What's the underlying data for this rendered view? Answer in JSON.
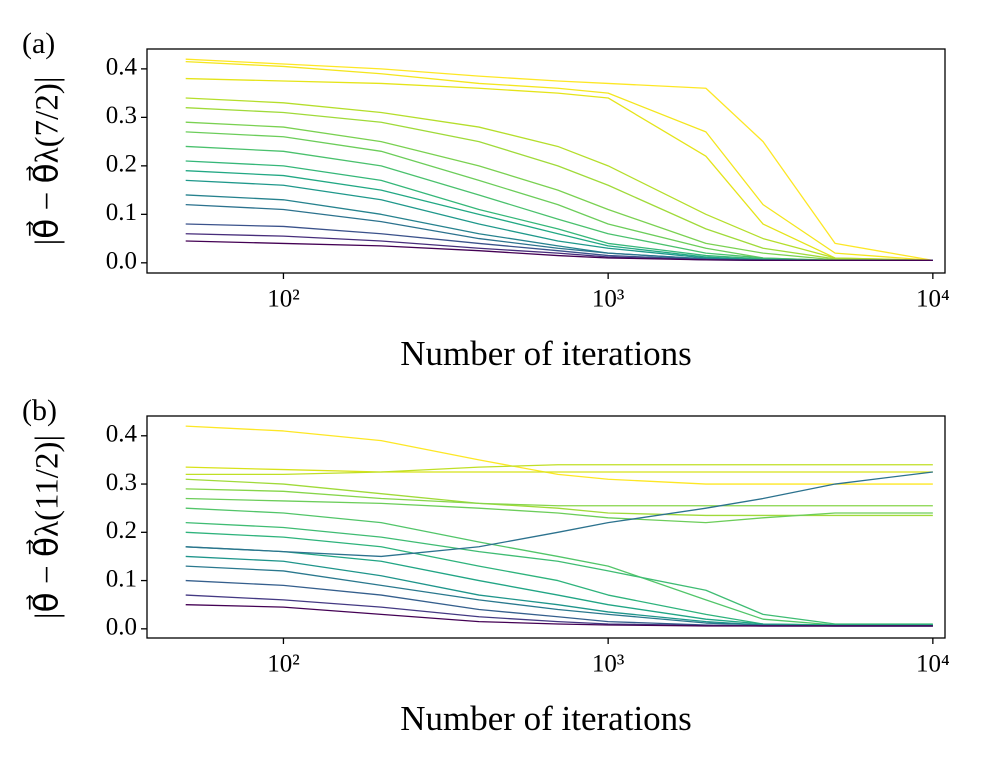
{
  "chart_data": [
    {
      "type": "line",
      "panel_label": "(a)",
      "xlabel": "Number of iterations",
      "ylabel": "|θ⃗ − θ⃗λ(7/2)|",
      "xscale": "log",
      "xlim": [
        38,
        10900
      ],
      "ylim": [
        -0.021,
        0.441
      ],
      "xticks": [
        {
          "value": 100,
          "label": "10²"
        },
        {
          "value": 1000,
          "label": "10³"
        },
        {
          "value": 10000,
          "label": "10⁴"
        }
      ],
      "yticks": [
        {
          "value": 0,
          "label": "0.0"
        },
        {
          "value": 0.1,
          "label": "0.1"
        },
        {
          "value": 0.2,
          "label": "0.2"
        },
        {
          "value": 0.3,
          "label": "0.3"
        },
        {
          "value": 0.4,
          "label": "0.4"
        }
      ],
      "x": [
        50,
        100,
        200,
        400,
        700,
        1000,
        2000,
        3000,
        5000,
        10000
      ],
      "series": [
        {
          "color": "#fde725",
          "values": [
            0.42,
            0.41,
            0.4,
            0.385,
            0.375,
            0.37,
            0.36,
            0.25,
            0.04,
            0.005
          ]
        },
        {
          "color": "#f4e61e",
          "values": [
            0.415,
            0.405,
            0.39,
            0.37,
            0.36,
            0.35,
            0.27,
            0.12,
            0.02,
            0.005
          ]
        },
        {
          "color": "#e5e419",
          "values": [
            0.38,
            0.375,
            0.37,
            0.36,
            0.35,
            0.34,
            0.22,
            0.08,
            0.01,
            0.005
          ]
        },
        {
          "color": "#b5de2b",
          "values": [
            0.34,
            0.33,
            0.31,
            0.28,
            0.24,
            0.2,
            0.1,
            0.05,
            0.01,
            0.005
          ]
        },
        {
          "color": "#a0da39",
          "values": [
            0.32,
            0.31,
            0.29,
            0.25,
            0.2,
            0.16,
            0.07,
            0.03,
            0.008,
            0.005
          ]
        },
        {
          "color": "#7ad151",
          "values": [
            0.29,
            0.28,
            0.25,
            0.2,
            0.15,
            0.11,
            0.04,
            0.02,
            0.006,
            0.005
          ]
        },
        {
          "color": "#6ccd5a",
          "values": [
            0.27,
            0.26,
            0.23,
            0.17,
            0.12,
            0.08,
            0.03,
            0.01,
            0.005,
            0.005
          ]
        },
        {
          "color": "#4ac16d",
          "values": [
            0.24,
            0.23,
            0.2,
            0.14,
            0.09,
            0.06,
            0.02,
            0.01,
            0.005,
            0.005
          ]
        },
        {
          "color": "#35b779",
          "values": [
            0.21,
            0.2,
            0.17,
            0.11,
            0.07,
            0.04,
            0.015,
            0.008,
            0.005,
            0.005
          ]
        },
        {
          "color": "#22a884",
          "values": [
            0.19,
            0.18,
            0.15,
            0.1,
            0.06,
            0.035,
            0.012,
            0.006,
            0.005,
            0.005
          ]
        },
        {
          "color": "#1f988b",
          "values": [
            0.17,
            0.16,
            0.13,
            0.08,
            0.045,
            0.03,
            0.01,
            0.006,
            0.005,
            0.005
          ]
        },
        {
          "color": "#26828e",
          "values": [
            0.14,
            0.13,
            0.1,
            0.06,
            0.035,
            0.02,
            0.008,
            0.006,
            0.005,
            0.005
          ]
        },
        {
          "color": "#2c728e",
          "values": [
            0.12,
            0.11,
            0.085,
            0.05,
            0.03,
            0.02,
            0.008,
            0.006,
            0.005,
            0.005
          ]
        },
        {
          "color": "#3b528b",
          "values": [
            0.08,
            0.075,
            0.06,
            0.04,
            0.025,
            0.015,
            0.007,
            0.005,
            0.005,
            0.005
          ]
        },
        {
          "color": "#472d7b",
          "values": [
            0.06,
            0.055,
            0.045,
            0.03,
            0.02,
            0.012,
            0.006,
            0.005,
            0.005,
            0.005
          ]
        },
        {
          "color": "#440154",
          "values": [
            0.045,
            0.04,
            0.035,
            0.025,
            0.015,
            0.01,
            0.006,
            0.005,
            0.005,
            0.005
          ]
        }
      ]
    },
    {
      "type": "line",
      "panel_label": "(b)",
      "xlabel": "Number of iterations",
      "ylabel": "|θ⃗ − θ⃗λ(11/2)|",
      "xscale": "log",
      "xlim": [
        38,
        10900
      ],
      "ylim": [
        -0.019,
        0.441
      ],
      "xticks": [
        {
          "value": 100,
          "label": "10²"
        },
        {
          "value": 1000,
          "label": "10³"
        },
        {
          "value": 10000,
          "label": "10⁴"
        }
      ],
      "yticks": [
        {
          "value": 0,
          "label": "0.0"
        },
        {
          "value": 0.1,
          "label": "0.1"
        },
        {
          "value": 0.2,
          "label": "0.2"
        },
        {
          "value": 0.3,
          "label": "0.3"
        },
        {
          "value": 0.4,
          "label": "0.4"
        }
      ],
      "x": [
        50,
        100,
        200,
        400,
        700,
        1000,
        2000,
        3000,
        5000,
        10000
      ],
      "series": [
        {
          "color": "#fde725",
          "values": [
            0.42,
            0.41,
            0.39,
            0.35,
            0.32,
            0.31,
            0.3,
            0.3,
            0.3,
            0.3
          ]
        },
        {
          "color": "#d8e219",
          "values": [
            0.335,
            0.33,
            0.325,
            0.325,
            0.325,
            0.325,
            0.325,
            0.325,
            0.325,
            0.325
          ]
        },
        {
          "color": "#c0df25",
          "values": [
            0.32,
            0.32,
            0.325,
            0.335,
            0.34,
            0.34,
            0.34,
            0.34,
            0.34,
            0.34
          ]
        },
        {
          "color": "#a0da39",
          "values": [
            0.31,
            0.3,
            0.28,
            0.26,
            0.25,
            0.24,
            0.235,
            0.235,
            0.235,
            0.235
          ]
        },
        {
          "color": "#86d549",
          "values": [
            0.29,
            0.285,
            0.27,
            0.26,
            0.255,
            0.255,
            0.255,
            0.255,
            0.255,
            0.255
          ]
        },
        {
          "color": "#6ccd5a",
          "values": [
            0.27,
            0.265,
            0.26,
            0.25,
            0.24,
            0.23,
            0.22,
            0.23,
            0.24,
            0.24
          ]
        },
        {
          "color": "#52c569",
          "values": [
            0.25,
            0.24,
            0.22,
            0.18,
            0.15,
            0.13,
            0.06,
            0.02,
            0.008,
            0.008
          ]
        },
        {
          "color": "#3fbc73",
          "values": [
            0.22,
            0.21,
            0.19,
            0.16,
            0.14,
            0.12,
            0.08,
            0.03,
            0.01,
            0.01
          ]
        },
        {
          "color": "#2eb37c",
          "values": [
            0.2,
            0.19,
            0.17,
            0.13,
            0.1,
            0.07,
            0.03,
            0.01,
            0.008,
            0.008
          ]
        },
        {
          "color": "#21a585",
          "values": [
            0.17,
            0.16,
            0.14,
            0.1,
            0.07,
            0.05,
            0.02,
            0.01,
            0.008,
            0.008
          ]
        },
        {
          "color": "#1f958b",
          "values": [
            0.15,
            0.14,
            0.11,
            0.07,
            0.05,
            0.035,
            0.015,
            0.008,
            0.006,
            0.006
          ]
        },
        {
          "color": "#2a788e",
          "values": [
            0.13,
            0.12,
            0.09,
            0.06,
            0.04,
            0.03,
            0.012,
            0.008,
            0.006,
            0.006
          ]
        },
        {
          "color": "#2c728e",
          "values": [
            0.17,
            0.16,
            0.15,
            0.17,
            0.2,
            0.22,
            0.25,
            0.27,
            0.3,
            0.325
          ]
        },
        {
          "color": "#355f8d",
          "values": [
            0.1,
            0.09,
            0.07,
            0.04,
            0.025,
            0.015,
            0.008,
            0.006,
            0.006,
            0.006
          ]
        },
        {
          "color": "#443983",
          "values": [
            0.07,
            0.06,
            0.045,
            0.025,
            0.015,
            0.01,
            0.007,
            0.006,
            0.006,
            0.006
          ]
        },
        {
          "color": "#440154",
          "values": [
            0.05,
            0.045,
            0.03,
            0.015,
            0.01,
            0.008,
            0.006,
            0.006,
            0.006,
            0.006
          ]
        }
      ]
    }
  ]
}
